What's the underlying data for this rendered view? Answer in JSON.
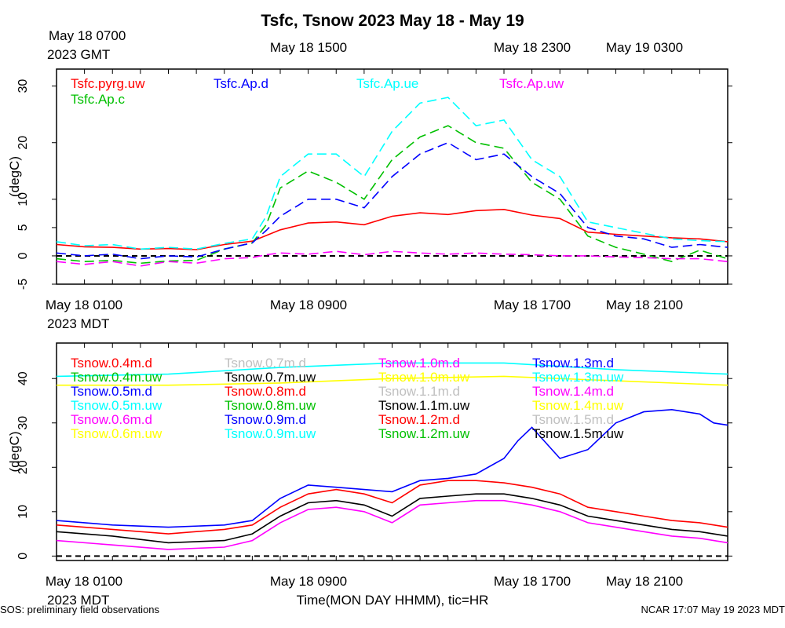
{
  "title": "Tsfc, Tsnow 2023 May 18 - May 19",
  "footer_left": "SOS: preliminary field observations",
  "footer_right": "NCAR 17:07 May 19 2023 MDT",
  "xlabel": "Time(MON DAY HHMM), tic=HR",
  "gmt_ticks": [
    {
      "h": 0,
      "label": "May 18 0700",
      "sub": "2023 GMT"
    },
    {
      "h": 8,
      "label": "May 18 1500",
      "sub": ""
    },
    {
      "h": 16,
      "label": "May 18 2300",
      "sub": ""
    },
    {
      "h": 20,
      "label": "May 19 0300",
      "sub": ""
    }
  ],
  "mdt_ticks": [
    {
      "h": 0,
      "label": "May 18 0100",
      "sub": "2023 MDT"
    },
    {
      "h": 8,
      "label": "May 18 0900",
      "sub": ""
    },
    {
      "h": 16,
      "label": "May 18 1700",
      "sub": ""
    },
    {
      "h": 20,
      "label": "May 18 2100",
      "sub": ""
    }
  ],
  "colors": {
    "red": "#ff0000",
    "green": "#00c000",
    "blue": "#0000ff",
    "cyan": "#00ffff",
    "magenta": "#ff00ff",
    "yellow": "#ffff00",
    "gray": "#c0c0c0",
    "black": "#000000"
  },
  "chart_data": [
    {
      "type": "line",
      "ylabel": "(degC)",
      "ylim": [
        -5,
        33
      ],
      "yticks": [
        -5,
        0,
        5,
        10,
        20,
        30
      ],
      "xlim_hours": [
        0,
        24
      ],
      "x_tick_every_hours": 1,
      "zero_line": true,
      "legend": [
        {
          "name": "Tsfc.pyrg.uw",
          "color": "#ff0000",
          "col": 0,
          "row": 0
        },
        {
          "name": "Tsfc.Ap.c",
          "color": "#00c000",
          "col": 0,
          "row": 1
        },
        {
          "name": "Tsfc.Ap.d",
          "color": "#0000ff",
          "col": 1,
          "row": 0
        },
        {
          "name": "Tsfc.Ap.ue",
          "color": "#00ffff",
          "col": 2,
          "row": 0
        },
        {
          "name": "Tsfc.Ap.uw",
          "color": "#ff00ff",
          "col": 3,
          "row": 0
        }
      ],
      "series": [
        {
          "name": "Tsfc.pyrg.uw",
          "color": "#ff0000",
          "dashed": false,
          "x": [
            0,
            1,
            2,
            3,
            4,
            5,
            6,
            7,
            7.5,
            8,
            9,
            10,
            11,
            12,
            13,
            14,
            15,
            16,
            17,
            18,
            19,
            20,
            21,
            22,
            23,
            24
          ],
          "y": [
            2,
            1.6,
            1.5,
            1.2,
            1.3,
            1.1,
            2,
            2.6,
            3.6,
            4.6,
            5.8,
            6,
            5.5,
            7,
            7.6,
            7.3,
            8,
            8.2,
            7.2,
            6.6,
            4.2,
            3.8,
            3.5,
            3.2,
            3,
            2.5
          ]
        },
        {
          "name": "Tsfc.Ap.c",
          "color": "#00c000",
          "dashed": true,
          "x": [
            0,
            1,
            2,
            3,
            4,
            5,
            6,
            7,
            7.5,
            8,
            9,
            10,
            11,
            12,
            13,
            14,
            15,
            16,
            17,
            18,
            19,
            20,
            21,
            22,
            23,
            24
          ],
          "y": [
            -0.5,
            -1,
            -0.8,
            -1.3,
            -0.9,
            -0.8,
            1.2,
            2.3,
            5.5,
            12,
            15,
            13,
            10,
            17,
            21,
            23,
            20,
            19,
            13,
            10,
            3.5,
            1.5,
            0.3,
            -1,
            1,
            -0.5
          ]
        },
        {
          "name": "Tsfc.Ap.d",
          "color": "#0000ff",
          "dashed": true,
          "x": [
            0,
            1,
            2,
            3,
            4,
            5,
            6,
            7,
            7.5,
            8,
            9,
            10,
            11,
            12,
            13,
            14,
            15,
            16,
            17,
            18,
            19,
            20,
            21,
            22,
            23,
            24
          ],
          "y": [
            0.5,
            0,
            0.3,
            -0.5,
            0,
            -0.2,
            1.2,
            2.3,
            4.5,
            7,
            10,
            10,
            8.5,
            14,
            18,
            20,
            17,
            18,
            14,
            11,
            5,
            3.5,
            3,
            1.5,
            2,
            1.5
          ]
        },
        {
          "name": "Tsfc.Ap.ue",
          "color": "#00ffff",
          "dashed": true,
          "x": [
            0,
            1,
            2,
            3,
            4,
            5,
            6,
            7,
            7.5,
            8,
            9,
            10,
            11,
            12,
            13,
            14,
            15,
            16,
            17,
            18,
            19,
            20,
            21,
            22,
            23,
            24
          ],
          "y": [
            2.5,
            1.8,
            2,
            1.2,
            1.5,
            1.2,
            2.2,
            3,
            7,
            14,
            18,
            18,
            14,
            22,
            27,
            28,
            23,
            24,
            17,
            14,
            6,
            5,
            4,
            3,
            2.7,
            2.5
          ]
        },
        {
          "name": "Tsfc.Ap.uw",
          "color": "#ff00ff",
          "dashed": true,
          "x": [
            0,
            1,
            2,
            3,
            4,
            5,
            6,
            7,
            7.5,
            8,
            9,
            10,
            11,
            12,
            13,
            14,
            15,
            16,
            17,
            18,
            19,
            20,
            21,
            22,
            23,
            24
          ],
          "y": [
            -1,
            -1.5,
            -1,
            -1.8,
            -1,
            -1.3,
            -0.5,
            -0.3,
            0.2,
            0.5,
            0.3,
            0.8,
            0.2,
            0.8,
            0.5,
            0.3,
            0.5,
            0.3,
            0.2,
            0,
            0,
            -0.2,
            -0.3,
            -0.5,
            -0.5,
            -1
          ]
        }
      ]
    },
    {
      "type": "line",
      "ylabel": "(degC)",
      "ylim": [
        -1,
        48
      ],
      "yticks": [
        0,
        10,
        20,
        30,
        40
      ],
      "xlim_hours": [
        0,
        24
      ],
      "x_tick_every_hours": 1,
      "zero_line": true,
      "legend": [
        {
          "name": "Tsnow.0.4m.d",
          "color": "#ff0000",
          "col": 0,
          "row": 0
        },
        {
          "name": "Tsnow.0.4m.uw",
          "color": "#00c000",
          "col": 0,
          "row": 1
        },
        {
          "name": "Tsnow.0.5m.d",
          "color": "#0000ff",
          "col": 0,
          "row": 2
        },
        {
          "name": "Tsnow.0.5m.uw",
          "color": "#00ffff",
          "col": 0,
          "row": 3
        },
        {
          "name": "Tsnow.0.6m.d",
          "color": "#ff00ff",
          "col": 0,
          "row": 4
        },
        {
          "name": "Tsnow.0.6m.uw",
          "color": "#ffff00",
          "col": 0,
          "row": 5
        },
        {
          "name": "Tsnow.0.7m.d",
          "color": "#c0c0c0",
          "col": 1,
          "row": 0
        },
        {
          "name": "Tsnow.0.7m.uw",
          "color": "#000000",
          "col": 1,
          "row": 1
        },
        {
          "name": "Tsnow.0.8m.d",
          "color": "#ff0000",
          "col": 1,
          "row": 2
        },
        {
          "name": "Tsnow.0.8m.uw",
          "color": "#00c000",
          "col": 1,
          "row": 3
        },
        {
          "name": "Tsnow.0.9m.d",
          "color": "#0000ff",
          "col": 1,
          "row": 4
        },
        {
          "name": "Tsnow.0.9m.uw",
          "color": "#00ffff",
          "col": 1,
          "row": 5
        },
        {
          "name": "Tsnow.1.0m.d",
          "color": "#ff00ff",
          "col": 2,
          "row": 0
        },
        {
          "name": "Tsnow.1.0m.uw",
          "color": "#ffff00",
          "col": 2,
          "row": 1
        },
        {
          "name": "Tsnow.1.1m.d",
          "color": "#c0c0c0",
          "col": 2,
          "row": 2
        },
        {
          "name": "Tsnow.1.1m.uw",
          "color": "#000000",
          "col": 2,
          "row": 3
        },
        {
          "name": "Tsnow.1.2m.d",
          "color": "#ff0000",
          "col": 2,
          "row": 4
        },
        {
          "name": "Tsnow.1.2m.uw",
          "color": "#00c000",
          "col": 2,
          "row": 5
        },
        {
          "name": "Tsnow.1.3m.d",
          "color": "#0000ff",
          "col": 3,
          "row": 0
        },
        {
          "name": "Tsnow.1.3m.uw",
          "color": "#00ffff",
          "col": 3,
          "row": 1
        },
        {
          "name": "Tsnow.1.4m.d",
          "color": "#ff00ff",
          "col": 3,
          "row": 2
        },
        {
          "name": "Tsnow.1.4m.uw",
          "color": "#ffff00",
          "col": 3,
          "row": 3
        },
        {
          "name": "Tsnow.1.5m.d",
          "color": "#c0c0c0",
          "col": 3,
          "row": 4
        },
        {
          "name": "Tsnow.1.5m.uw",
          "color": "#000000",
          "col": 3,
          "row": 5
        }
      ],
      "series": [
        {
          "name": "Tsnow.1.0m.uw",
          "color": "#ffff00",
          "x": [
            0,
            4,
            8,
            12,
            16,
            20,
            24
          ],
          "y": [
            38.5,
            38.5,
            39,
            40,
            40.5,
            39.5,
            38.5
          ]
        },
        {
          "name": "Tsnow.1.3m.uw",
          "color": "#00ffff",
          "x": [
            0,
            4,
            8,
            12,
            16,
            20,
            24
          ],
          "y": [
            40.5,
            41,
            42.5,
            43.5,
            43.5,
            42,
            41
          ]
        },
        {
          "name": "Tsnow.1.3m.d",
          "color": "#0000ff",
          "x": [
            0,
            2,
            4,
            6,
            7,
            8,
            9,
            10,
            11,
            12,
            13,
            14,
            15,
            16,
            16.5,
            17,
            18,
            19,
            20,
            21,
            22,
            23,
            23.5,
            24
          ],
          "y": [
            8,
            7,
            6.5,
            7,
            8,
            13,
            16,
            15.5,
            15,
            14.5,
            17,
            17.5,
            18.5,
            22,
            26,
            29,
            22,
            24,
            30,
            32.5,
            33,
            32,
            30,
            29.5
          ]
        },
        {
          "name": "Tsnow.0.4m.d",
          "color": "#ff0000",
          "x": [
            0,
            2,
            4,
            6,
            7,
            8,
            9,
            10,
            11,
            12,
            13,
            14,
            15,
            16,
            17,
            18,
            19,
            20,
            21,
            22,
            23,
            24
          ],
          "y": [
            7,
            6,
            5,
            6,
            7,
            11,
            14,
            15,
            14,
            12,
            16,
            17,
            17,
            16.5,
            15.5,
            14,
            11,
            10,
            9,
            8,
            7.5,
            6.5
          ]
        },
        {
          "name": "Tsnow.0.7m.uw",
          "color": "#000000",
          "x": [
            0,
            2,
            4,
            6,
            7,
            8,
            9,
            10,
            11,
            12,
            13,
            14,
            15,
            16,
            17,
            18,
            19,
            20,
            21,
            22,
            23,
            24
          ],
          "y": [
            5.5,
            4.5,
            3,
            3.5,
            5,
            9,
            12,
            12.5,
            11.5,
            9,
            13,
            13.5,
            14,
            14,
            13,
            11.5,
            9,
            8,
            7,
            6,
            5.5,
            4.5
          ]
        },
        {
          "name": "Tsnow.0.6m.d",
          "color": "#ff00ff",
          "x": [
            0,
            2,
            4,
            6,
            7,
            8,
            9,
            10,
            11,
            12,
            13,
            14,
            15,
            16,
            17,
            18,
            19,
            20,
            21,
            22,
            23,
            24
          ],
          "y": [
            3.5,
            2.5,
            1.5,
            2,
            3.5,
            7.5,
            10.5,
            11,
            10,
            7.5,
            11.5,
            12,
            12.5,
            12.5,
            11.5,
            10,
            7.5,
            6.5,
            5.5,
            4.5,
            4,
            3
          ]
        }
      ]
    }
  ]
}
